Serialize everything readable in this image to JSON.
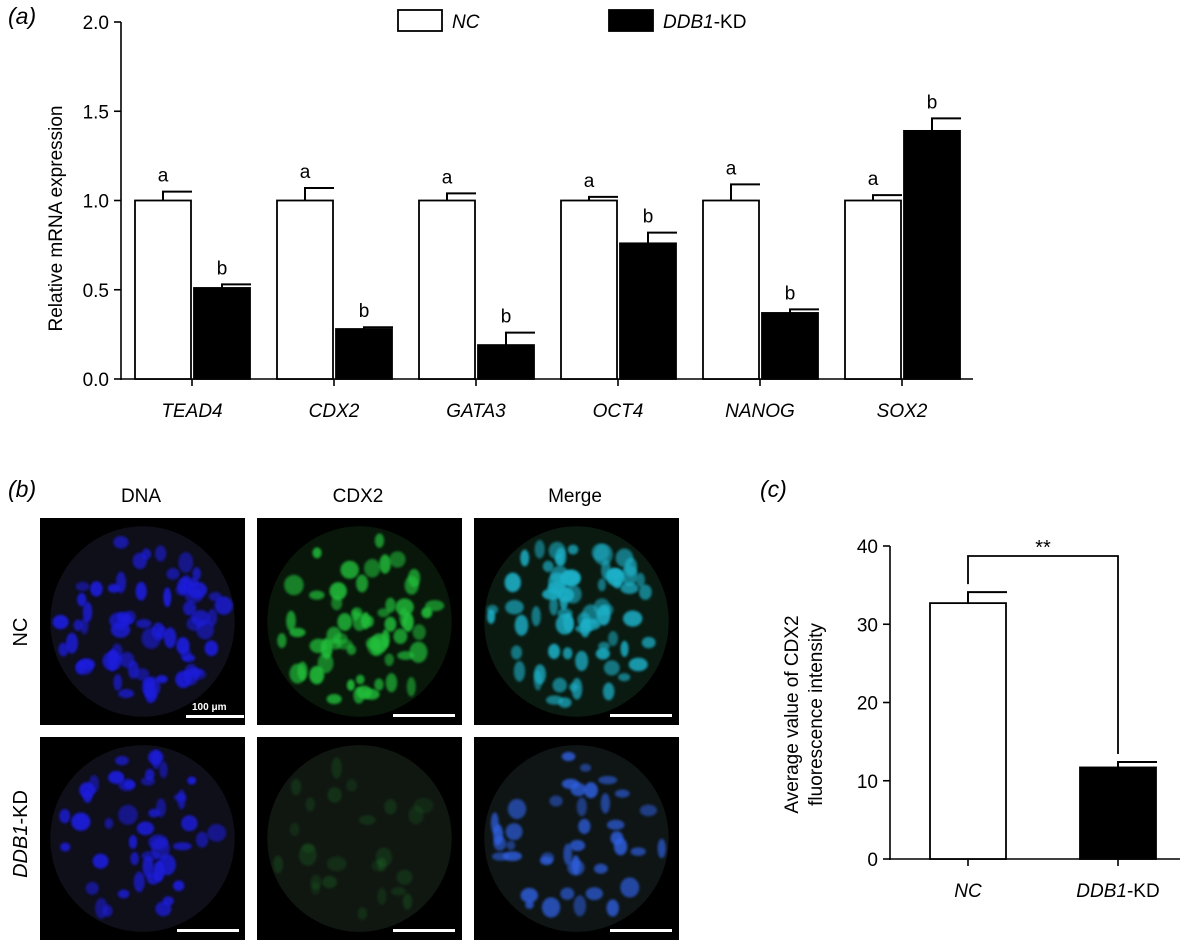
{
  "panels": {
    "a_label": "(a)",
    "b_label": "(b)",
    "c_label": "(c)"
  },
  "colors": {
    "nc_fill": "#ffffff",
    "kd_fill": "#000000",
    "dna_blue": "#1a1adb",
    "cdx2_green": "#22c03a",
    "merge_cyan": "#1ab0c8"
  },
  "chart_data": [
    {
      "type": "bar",
      "panel": "a",
      "categories": [
        "TEAD4",
        "CDX2",
        "GATA3",
        "OCT4",
        "NANOG",
        "SOX2"
      ],
      "categories_italic": true,
      "legend_placement": "top",
      "series": [
        {
          "name": "NC",
          "name_parts": [
            "",
            "NC",
            ""
          ],
          "values": [
            1.0,
            1.0,
            1.0,
            1.0,
            1.0,
            1.0
          ],
          "errors": [
            0.05,
            0.07,
            0.04,
            0.02,
            0.09,
            0.03
          ],
          "letters": [
            "a",
            "a",
            "a",
            "a",
            "a",
            "a"
          ]
        },
        {
          "name": "DDB1-KD",
          "name_parts": [
            "",
            "DDB1",
            "-KD"
          ],
          "values": [
            0.51,
            0.28,
            0.19,
            0.76,
            0.37,
            1.39
          ],
          "errors": [
            0.02,
            0.01,
            0.07,
            0.06,
            0.02,
            0.07
          ],
          "letters": [
            "b",
            "b",
            "b",
            "b",
            "b",
            "b"
          ]
        }
      ],
      "ylabel": "Relative mRNA expression",
      "ylim": [
        0,
        2.0
      ],
      "yticks": [
        "0.0",
        "0.5",
        "1.0",
        "1.5",
        "2.0"
      ],
      "grid": false
    },
    {
      "type": "bar",
      "panel": "c",
      "categories": [
        "NC",
        "DDB1-KD"
      ],
      "category_parts": [
        [
          "",
          "NC",
          ""
        ],
        [
          "",
          "DDB1",
          "-KD"
        ]
      ],
      "values": [
        32.7,
        11.7
      ],
      "errors": [
        1.4,
        0.7
      ],
      "ylabel_lines": [
        "Average value of CDX2",
        "fluorescence intensity"
      ],
      "ylim": [
        0,
        40
      ],
      "yticks": [
        "0",
        "10",
        "20",
        "30",
        "40"
      ],
      "significance": "**",
      "grid": false
    }
  ],
  "micrographs": {
    "column_titles": [
      "DNA",
      "CDX2",
      "Merge"
    ],
    "row_labels": [
      {
        "pre": "",
        "it": "",
        "post": "NC"
      },
      {
        "pre": "",
        "it": "DDB1",
        "post": "-KD"
      }
    ],
    "scale_label": "100 μm"
  }
}
